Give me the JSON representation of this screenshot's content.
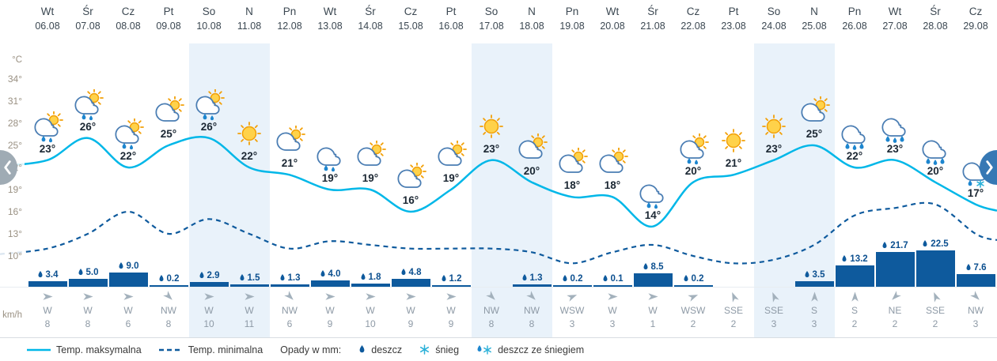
{
  "axis": {
    "unit_top": "°C",
    "unit_bottom": "km/h",
    "ticks": [
      "34°",
      "31°",
      "28°",
      "25°",
      "22°",
      "19°",
      "16°",
      "13°",
      "10°"
    ]
  },
  "legend": {
    "max_label": "Temp. maksymalna",
    "min_label": "Temp. minimalna",
    "precip_label": "Opady w mm:",
    "rain_label": "deszcz",
    "snow_label": "śnieg",
    "rain_snow_label": "deszcz ze śniegiem"
  },
  "colors": {
    "max_line": "#00b7e8",
    "min_line": "#0e5a9d",
    "bar": "#0e5a9d",
    "weekend_bg": "#e9f2fa",
    "wind_text": "#8e9aa6",
    "axis_text": "#9a9183"
  },
  "chart_data": {
    "type": "line",
    "title": "",
    "ylabel": "°C",
    "ylim": [
      10,
      34
    ],
    "ytick_step": 3,
    "legend_position": "bottom",
    "series": [
      {
        "name": "Temp. maksymalna",
        "style": "solid",
        "color": "#00b7e8"
      },
      {
        "name": "Temp. minimalna",
        "style": "dashed",
        "color": "#0e5a9d"
      }
    ],
    "columns": [
      {
        "day": "Wt",
        "date": "06.08",
        "tmax": 23,
        "tmin": 11,
        "icon": "sun,cloud,rain",
        "precip": "3.4",
        "wind_dir": "W",
        "wind_speed": 8,
        "weekend": false
      },
      {
        "day": "Śr",
        "date": "07.08",
        "tmax": 26,
        "tmin": 13,
        "icon": "sun,cloud,rain",
        "precip": "5.0",
        "wind_dir": "W",
        "wind_speed": 8,
        "weekend": false
      },
      {
        "day": "Cz",
        "date": "08.08",
        "tmax": 22,
        "tmin": 16,
        "icon": "sun,cloud,rain",
        "precip": "9.0",
        "wind_dir": "W",
        "wind_speed": 6,
        "weekend": false
      },
      {
        "day": "Pt",
        "date": "09.08",
        "tmax": 25,
        "tmin": 13,
        "icon": "sun,cloud",
        "precip": "0.2",
        "wind_dir": "NW",
        "wind_speed": 8,
        "weekend": false
      },
      {
        "day": "So",
        "date": "10.08",
        "tmax": 26,
        "tmin": 15,
        "icon": "sun,cloud,rain",
        "precip": "2.9",
        "wind_dir": "W",
        "wind_speed": 10,
        "weekend": true
      },
      {
        "day": "N",
        "date": "11.08",
        "tmax": 22,
        "tmin": 13,
        "icon": "sun",
        "precip": "1.5",
        "wind_dir": "W",
        "wind_speed": 11,
        "weekend": true
      },
      {
        "day": "Pn",
        "date": "12.08",
        "tmax": 21,
        "tmin": 11,
        "icon": "sun,cloud",
        "precip": "1.3",
        "wind_dir": "NW",
        "wind_speed": 6,
        "weekend": false
      },
      {
        "day": "Wt",
        "date": "13.08",
        "tmax": 19,
        "tmin": 12,
        "icon": "cloud,rain",
        "precip": "4.0",
        "wind_dir": "W",
        "wind_speed": 9,
        "weekend": false
      },
      {
        "day": "Śr",
        "date": "14.08",
        "tmax": 19,
        "tmin": 11.5,
        "icon": "sun,cloud",
        "precip": "1.8",
        "wind_dir": "W",
        "wind_speed": 10,
        "weekend": false
      },
      {
        "day": "Cz",
        "date": "15.08",
        "tmax": 16,
        "tmin": 11,
        "icon": "sun,cloud",
        "precip": "4.8",
        "wind_dir": "W",
        "wind_speed": 9,
        "weekend": false
      },
      {
        "day": "Pt",
        "date": "16.08",
        "tmax": 19,
        "tmin": 11,
        "icon": "sun,cloud",
        "precip": "1.2",
        "wind_dir": "W",
        "wind_speed": 9,
        "weekend": false
      },
      {
        "day": "So",
        "date": "17.08",
        "tmax": 23,
        "tmin": 11,
        "icon": "sun",
        "precip": null,
        "wind_dir": "NW",
        "wind_speed": 8,
        "weekend": true
      },
      {
        "day": "N",
        "date": "18.08",
        "tmax": 20,
        "tmin": 10.5,
        "icon": "sun,cloud",
        "precip": "1.3",
        "wind_dir": "NW",
        "wind_speed": 8,
        "weekend": true
      },
      {
        "day": "Pn",
        "date": "19.08",
        "tmax": 18,
        "tmin": 9,
        "icon": "sun,cloud",
        "precip": "0.2",
        "wind_dir": "WSW",
        "wind_speed": 3,
        "weekend": false
      },
      {
        "day": "Wt",
        "date": "20.08",
        "tmax": 18,
        "tmin": 10.5,
        "icon": "sun,cloud",
        "precip": "0.1",
        "wind_dir": "W",
        "wind_speed": 3,
        "weekend": false
      },
      {
        "day": "Śr",
        "date": "21.08",
        "tmax": 14,
        "tmin": 11.5,
        "icon": "cloud,rain",
        "precip": "8.5",
        "wind_dir": "W",
        "wind_speed": 1,
        "weekend": false
      },
      {
        "day": "Cz",
        "date": "22.08",
        "tmax": 20,
        "tmin": 10,
        "icon": "sun,cloud,rain",
        "precip": "0.2",
        "wind_dir": "WSW",
        "wind_speed": 2,
        "weekend": false
      },
      {
        "day": "Pt",
        "date": "23.08",
        "tmax": 21,
        "tmin": 9,
        "icon": "sun",
        "precip": null,
        "wind_dir": "SSE",
        "wind_speed": 2,
        "weekend": false
      },
      {
        "day": "So",
        "date": "24.08",
        "tmax": 23,
        "tmin": 9.5,
        "icon": "sun",
        "precip": null,
        "wind_dir": "SSE",
        "wind_speed": 3,
        "weekend": true
      },
      {
        "day": "N",
        "date": "25.08",
        "tmax": 25,
        "tmin": 11.5,
        "icon": "sun,cloud",
        "precip": "3.5",
        "wind_dir": "S",
        "wind_speed": 3,
        "weekend": true
      },
      {
        "day": "Pn",
        "date": "26.08",
        "tmax": 22,
        "tmin": 15.5,
        "icon": "cloud,rain2",
        "precip": "13.2",
        "wind_dir": "S",
        "wind_speed": 2,
        "weekend": false
      },
      {
        "day": "Wt",
        "date": "27.08",
        "tmax": 23,
        "tmin": 16.5,
        "icon": "cloud,rain2",
        "precip": "21.7",
        "wind_dir": "NE",
        "wind_speed": 2,
        "weekend": false
      },
      {
        "day": "Śr",
        "date": "28.08",
        "tmax": 20,
        "tmin": 17,
        "icon": "cloud,rain2",
        "precip": "22.5",
        "wind_dir": "SSE",
        "wind_speed": 2,
        "weekend": false
      },
      {
        "day": "Cz",
        "date": "29.08",
        "tmax": 17,
        "tmin": 13,
        "icon": "cloud,rain,snow",
        "precip": "7.6",
        "wind_dir": "NW",
        "wind_speed": 3,
        "weekend": false
      }
    ]
  }
}
